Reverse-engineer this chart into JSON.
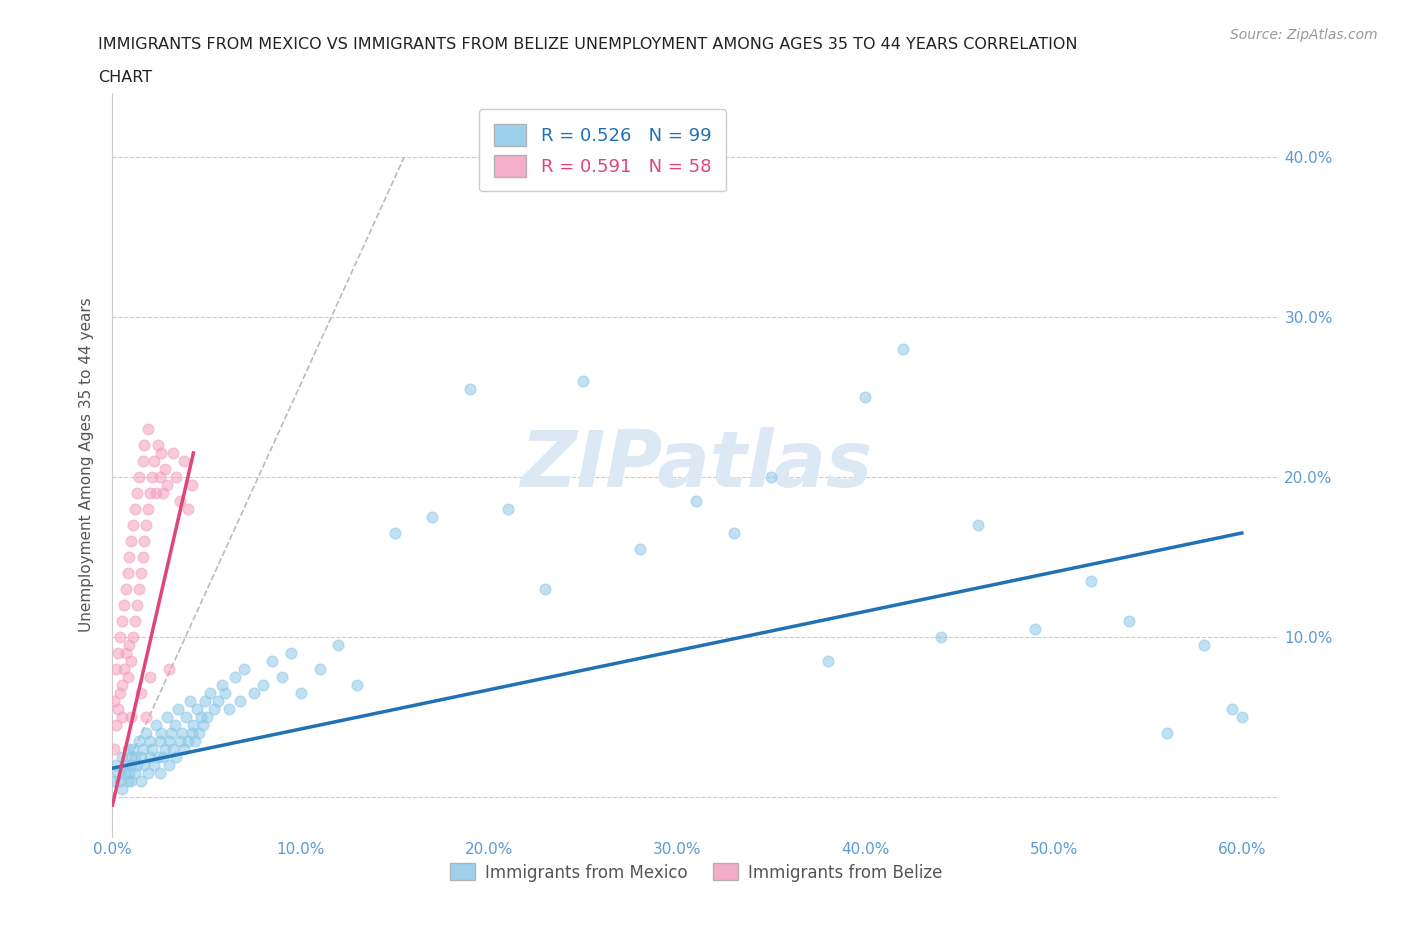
{
  "title": "IMMIGRANTS FROM MEXICO VS IMMIGRANTS FROM BELIZE UNEMPLOYMENT AMONG AGES 35 TO 44 YEARS CORRELATION\nCHART",
  "source_text": "Source: ZipAtlas.com",
  "ylabel": "Unemployment Among Ages 35 to 44 years",
  "xlim": [
    0.0,
    0.62
  ],
  "ylim": [
    -0.025,
    0.44
  ],
  "xticks": [
    0.0,
    0.1,
    0.2,
    0.3,
    0.4,
    0.5,
    0.6
  ],
  "xticklabels": [
    "0.0%",
    "10.0%",
    "20.0%",
    "30.0%",
    "40.0%",
    "50.0%",
    "60.0%"
  ],
  "yticks": [
    0.0,
    0.1,
    0.2,
    0.3,
    0.4
  ],
  "yticklabels": [
    "",
    "10.0%",
    "20.0%",
    "30.0%",
    "40.0%"
  ],
  "mexico_color": "#8ec8e8",
  "mexico_color_line": "#2171b5",
  "belize_color": "#f4a0c0",
  "belize_color_line": "#e0457a",
  "mexico_R": 0.526,
  "mexico_N": 99,
  "belize_R": 0.591,
  "belize_N": 58,
  "watermark": "ZIPatlas",
  "legend_mexico": "Immigrants from Mexico",
  "legend_belize": "Immigrants from Belize",
  "mexico_scatter_x": [
    0.001,
    0.002,
    0.003,
    0.004,
    0.005,
    0.005,
    0.006,
    0.007,
    0.008,
    0.008,
    0.009,
    0.01,
    0.01,
    0.01,
    0.011,
    0.012,
    0.012,
    0.013,
    0.014,
    0.015,
    0.015,
    0.016,
    0.017,
    0.018,
    0.019,
    0.02,
    0.02,
    0.021,
    0.022,
    0.023,
    0.024,
    0.025,
    0.025,
    0.026,
    0.027,
    0.028,
    0.029,
    0.03,
    0.03,
    0.031,
    0.032,
    0.033,
    0.034,
    0.035,
    0.036,
    0.037,
    0.038,
    0.039,
    0.04,
    0.041,
    0.042,
    0.043,
    0.044,
    0.045,
    0.046,
    0.047,
    0.048,
    0.049,
    0.05,
    0.052,
    0.054,
    0.056,
    0.058,
    0.06,
    0.062,
    0.065,
    0.068,
    0.07,
    0.075,
    0.08,
    0.085,
    0.09,
    0.095,
    0.1,
    0.11,
    0.12,
    0.13,
    0.15,
    0.17,
    0.19,
    0.21,
    0.23,
    0.25,
    0.28,
    0.31,
    0.33,
    0.35,
    0.38,
    0.4,
    0.42,
    0.44,
    0.46,
    0.49,
    0.52,
    0.54,
    0.56,
    0.58,
    0.595,
    0.6
  ],
  "mexico_scatter_y": [
    0.01,
    0.02,
    0.015,
    0.01,
    0.025,
    0.005,
    0.015,
    0.02,
    0.01,
    0.03,
    0.015,
    0.02,
    0.025,
    0.01,
    0.03,
    0.015,
    0.025,
    0.02,
    0.035,
    0.025,
    0.01,
    0.03,
    0.02,
    0.04,
    0.015,
    0.025,
    0.035,
    0.03,
    0.02,
    0.045,
    0.025,
    0.035,
    0.015,
    0.04,
    0.025,
    0.03,
    0.05,
    0.035,
    0.02,
    0.04,
    0.03,
    0.045,
    0.025,
    0.055,
    0.035,
    0.04,
    0.03,
    0.05,
    0.035,
    0.06,
    0.04,
    0.045,
    0.035,
    0.055,
    0.04,
    0.05,
    0.045,
    0.06,
    0.05,
    0.065,
    0.055,
    0.06,
    0.07,
    0.065,
    0.055,
    0.075,
    0.06,
    0.08,
    0.065,
    0.07,
    0.085,
    0.075,
    0.09,
    0.065,
    0.08,
    0.095,
    0.07,
    0.165,
    0.175,
    0.255,
    0.18,
    0.13,
    0.26,
    0.155,
    0.185,
    0.165,
    0.2,
    0.085,
    0.25,
    0.28,
    0.1,
    0.17,
    0.105,
    0.135,
    0.11,
    0.04,
    0.095,
    0.055,
    0.05
  ],
  "belize_scatter_x": [
    0.001,
    0.001,
    0.002,
    0.002,
    0.003,
    0.003,
    0.004,
    0.004,
    0.005,
    0.005,
    0.005,
    0.006,
    0.006,
    0.007,
    0.007,
    0.008,
    0.008,
    0.009,
    0.009,
    0.01,
    0.01,
    0.01,
    0.011,
    0.011,
    0.012,
    0.012,
    0.013,
    0.013,
    0.014,
    0.014,
    0.015,
    0.015,
    0.016,
    0.016,
    0.017,
    0.017,
    0.018,
    0.018,
    0.019,
    0.019,
    0.02,
    0.02,
    0.021,
    0.022,
    0.023,
    0.024,
    0.025,
    0.026,
    0.027,
    0.028,
    0.029,
    0.03,
    0.032,
    0.034,
    0.036,
    0.038,
    0.04,
    0.042
  ],
  "belize_scatter_y": [
    0.03,
    0.06,
    0.045,
    0.08,
    0.055,
    0.09,
    0.065,
    0.1,
    0.07,
    0.11,
    0.05,
    0.08,
    0.12,
    0.09,
    0.13,
    0.075,
    0.14,
    0.095,
    0.15,
    0.085,
    0.16,
    0.05,
    0.1,
    0.17,
    0.11,
    0.18,
    0.12,
    0.19,
    0.13,
    0.2,
    0.14,
    0.065,
    0.15,
    0.21,
    0.16,
    0.22,
    0.17,
    0.05,
    0.18,
    0.23,
    0.19,
    0.075,
    0.2,
    0.21,
    0.19,
    0.22,
    0.2,
    0.215,
    0.19,
    0.205,
    0.195,
    0.08,
    0.215,
    0.2,
    0.185,
    0.21,
    0.18,
    0.195
  ],
  "mexico_line_x": [
    0.0,
    0.6
  ],
  "mexico_line_y": [
    0.018,
    0.165
  ],
  "belize_line_x": [
    0.0,
    0.043
  ],
  "belize_line_y": [
    -0.005,
    0.215
  ],
  "diag_line_x": [
    0.0,
    0.155
  ],
  "diag_line_y": [
    0.0,
    0.4
  ],
  "background_color": "#ffffff",
  "grid_color": "#cccccc",
  "title_color": "#222222",
  "axis_label_color": "#555555",
  "tick_color": "#5b9bd5",
  "watermark_color": "#dde8f5",
  "scatter_size": 60,
  "scatter_alpha": 0.55,
  "scatter_linewidth": 1.0
}
